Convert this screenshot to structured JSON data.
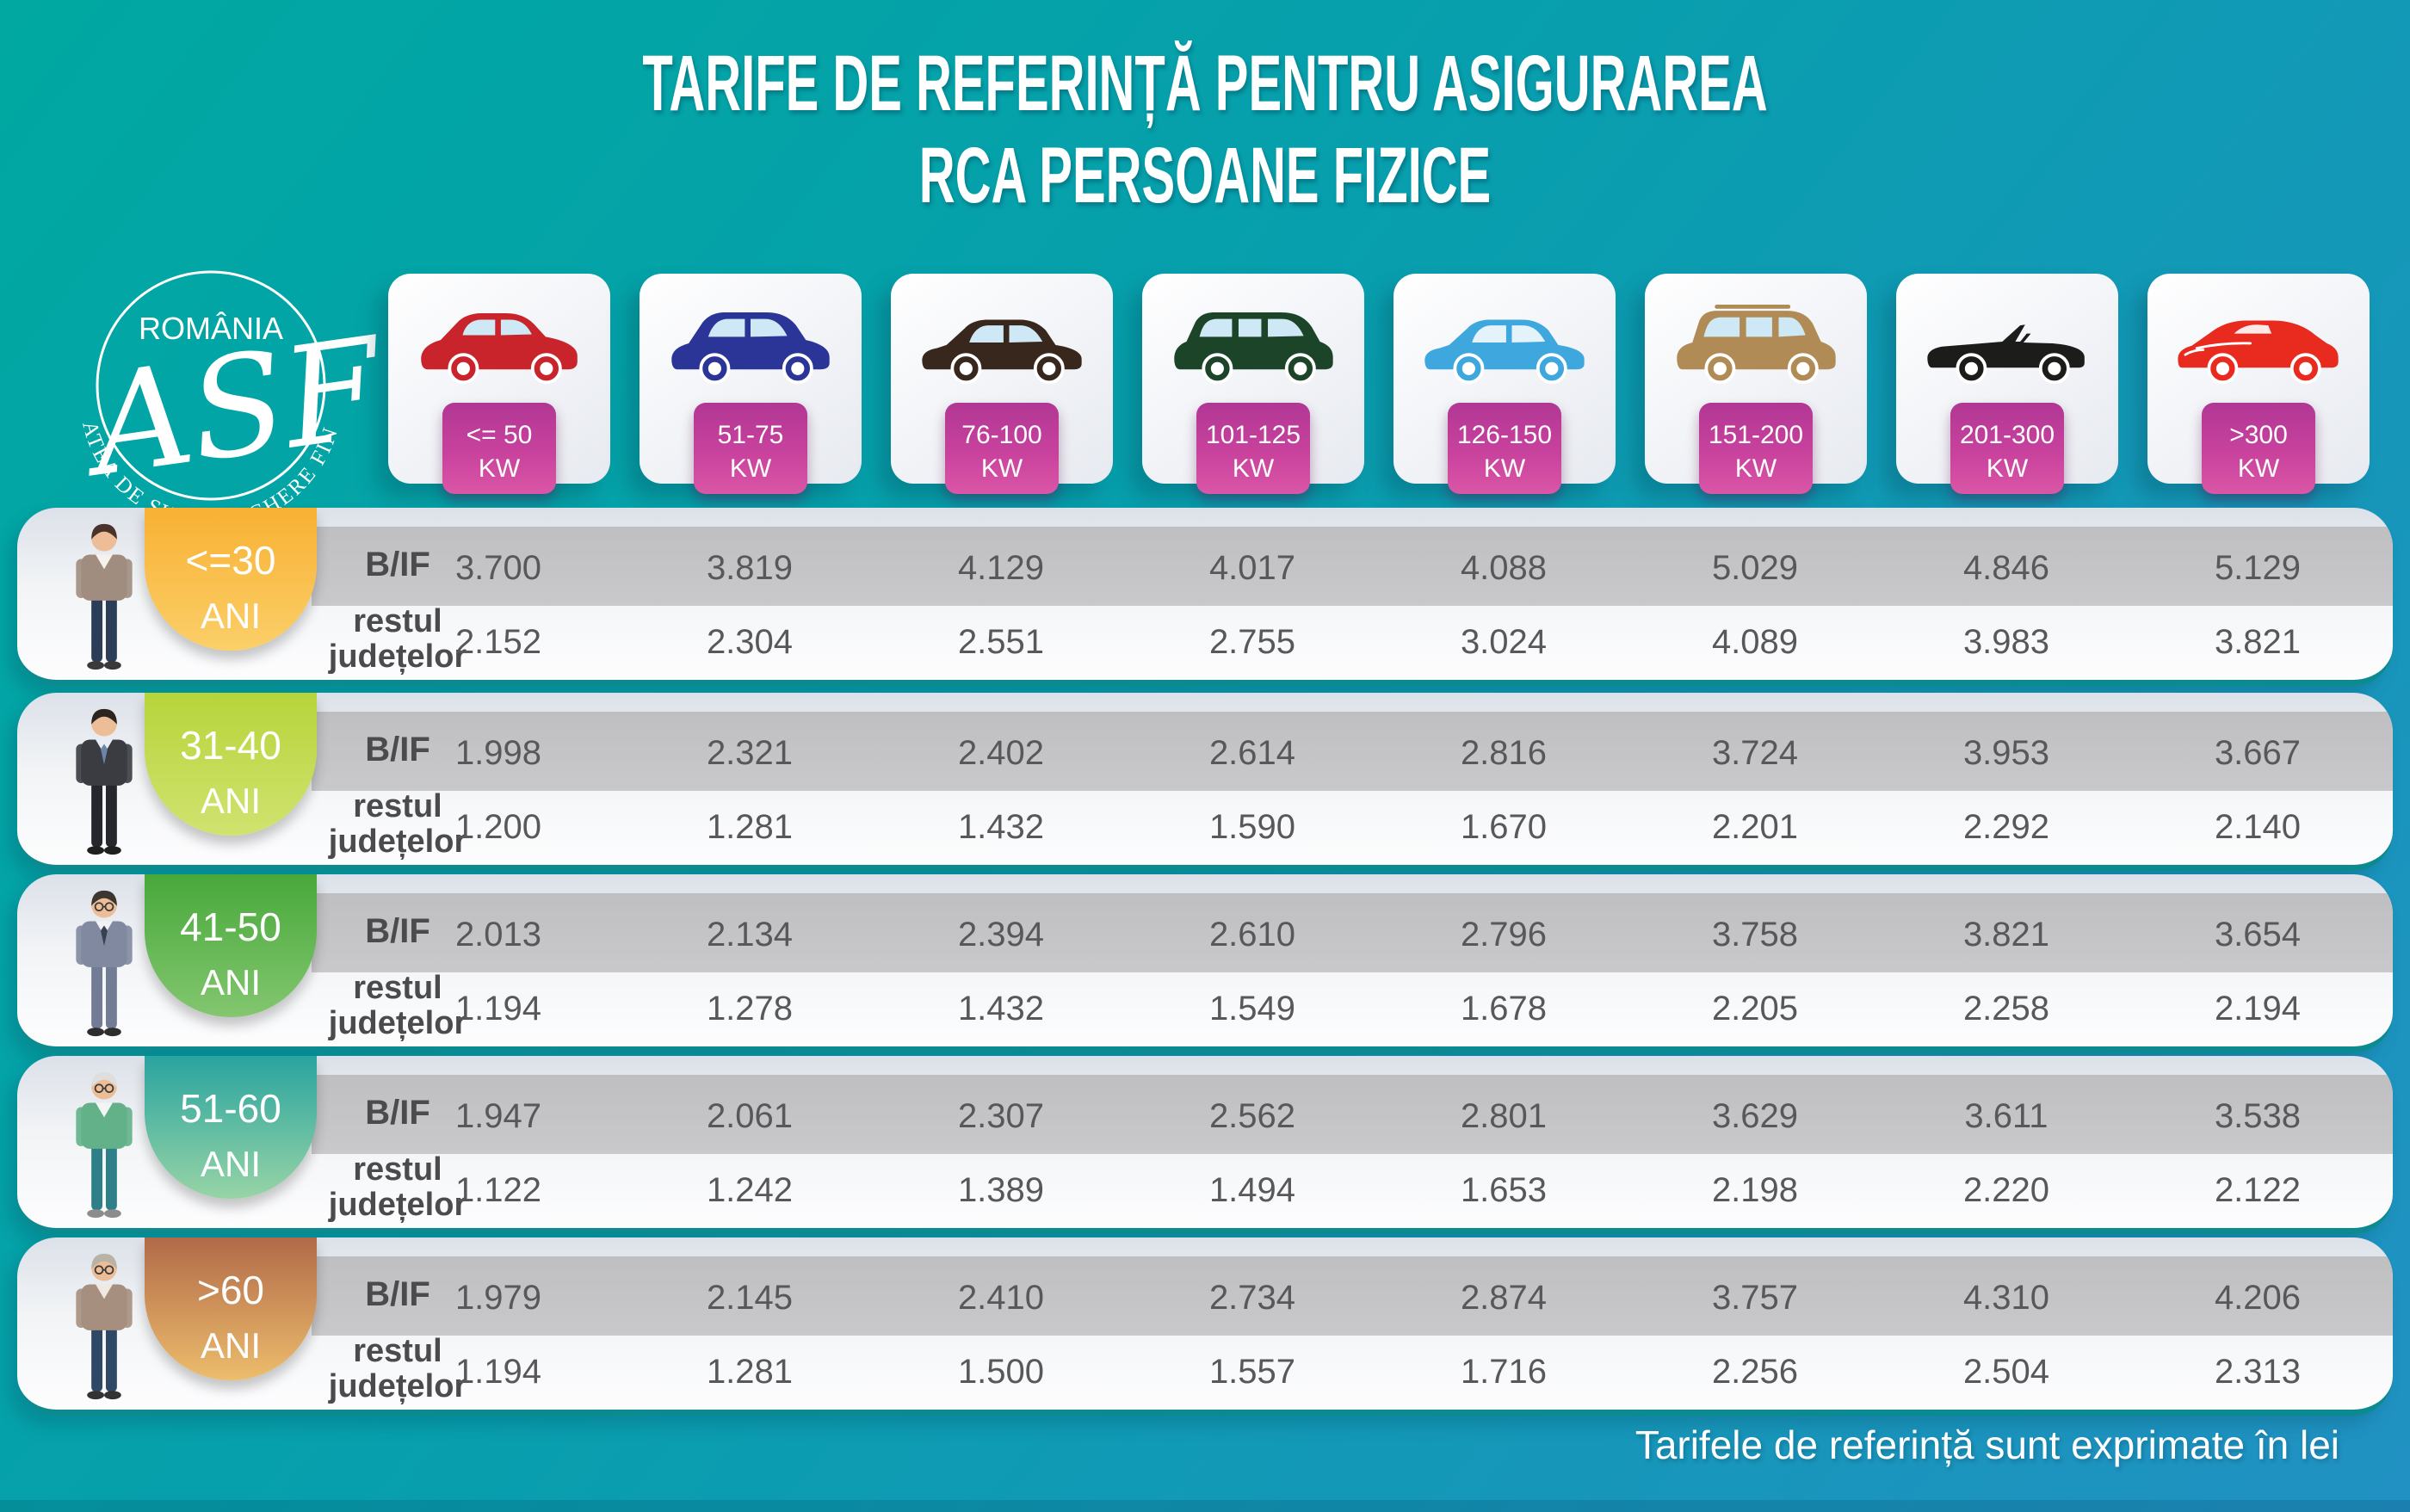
{
  "title": {
    "line1": "TARIFE DE REFERINȚĂ PENTRU ASIGURAREA",
    "line2": "RCA PERSOANE FIZICE"
  },
  "logo": {
    "country": "ROMÂNIA",
    "org_arc": "AUTORITATEA DE SUPRAVEGHERE FINANCIARĂ",
    "monogram": "ASF"
  },
  "power_categories": [
    {
      "range": "<= 50",
      "unit": "KW",
      "car_type": "hatchback",
      "car_color": "#c9242b",
      "glass_color": "#cfe8f5"
    },
    {
      "range": "51-75",
      "unit": "KW",
      "car_type": "crossover",
      "car_color": "#2b3598",
      "glass_color": "#cfe8f5"
    },
    {
      "range": "76-100",
      "unit": "KW",
      "car_type": "sedan",
      "car_color": "#38271c",
      "glass_color": "#cfe8f5"
    },
    {
      "range": "101-125",
      "unit": "KW",
      "car_type": "minivan",
      "car_color": "#1c4429",
      "glass_color": "#cfe8f5"
    },
    {
      "range": "126-150",
      "unit": "KW",
      "car_type": "sedan",
      "car_color": "#3ea7de",
      "glass_color": "#e4f2fa"
    },
    {
      "range": "151-200",
      "unit": "KW",
      "car_type": "suv",
      "car_color": "#b18b56",
      "glass_color": "#cfe8f5"
    },
    {
      "range": "201-300",
      "unit": "KW",
      "car_type": "convertible",
      "car_color": "#1c1c1a",
      "glass_color": "#cfe8f5"
    },
    {
      "range": ">300",
      "unit": "KW",
      "car_type": "sports",
      "car_color": "#e92a1f",
      "glass_color": "#fde9e8"
    }
  ],
  "row_labels": {
    "bif": "B/IF",
    "rest_line1": "restul",
    "rest_line2": "județelor"
  },
  "age_groups": [
    {
      "age_line1": "<=30",
      "age_line2": "ANI",
      "badge_from": "#f8b133",
      "badge_to": "#fbcf69",
      "avatar": {
        "hair": "#4a332a",
        "top": "#a08d7f",
        "shirt": "#f5f2ee",
        "pants": "#2c3e57",
        "shoes": "#3a3a3a",
        "glasses": false,
        "tie": ""
      },
      "bif_values": [
        "3.700",
        "3.819",
        "4.129",
        "4.017",
        "4.088",
        "5.029",
        "4.846",
        "5.129"
      ],
      "rest_values": [
        "2.152",
        "2.304",
        "2.551",
        "2.755",
        "3.024",
        "4.089",
        "3.983",
        "3.821"
      ]
    },
    {
      "age_line1": "31-40",
      "age_line2": "ANI",
      "badge_from": "#b7d43a",
      "badge_to": "#d0e370",
      "avatar": {
        "hair": "#2b241f",
        "top": "#3a3c42",
        "shirt": "#e8eef4",
        "pants": "#26272c",
        "shoes": "#1f1f1f",
        "glasses": false,
        "tie": "#6b87a8"
      },
      "bif_values": [
        "1.998",
        "2.321",
        "2.402",
        "2.614",
        "2.816",
        "3.724",
        "3.953",
        "3.667"
      ],
      "rest_values": [
        "1.200",
        "1.281",
        "1.432",
        "1.590",
        "1.670",
        "2.201",
        "2.292",
        "2.140"
      ]
    },
    {
      "age_line1": "41-50",
      "age_line2": "ANI",
      "badge_from": "#48a93b",
      "badge_to": "#83c66f",
      "avatar": {
        "hair": "#3c3631",
        "top": "#8089a0",
        "shirt": "#f0f2f5",
        "pants": "#737c95",
        "shoes": "#2d2d2d",
        "glasses": true,
        "tie": "#39404e"
      },
      "bif_values": [
        "2.013",
        "2.134",
        "2.394",
        "2.610",
        "2.796",
        "3.758",
        "3.821",
        "3.654"
      ],
      "rest_values": [
        "1.194",
        "1.278",
        "1.432",
        "1.549",
        "1.678",
        "2.205",
        "2.258",
        "2.194"
      ]
    },
    {
      "age_line1": "51-60",
      "age_line2": "ANI",
      "badge_from": "#2aa49f",
      "badge_to": "#97d4a6",
      "avatar": {
        "hair": "#dedede",
        "top": "#63b189",
        "shirt": "#f2f5f3",
        "pants": "#2e7f88",
        "shoes": "#8c8c8c",
        "glasses": true,
        "tie": ""
      },
      "bif_values": [
        "1.947",
        "2.061",
        "2.307",
        "2.562",
        "2.801",
        "3.629",
        "3.611",
        "3.538"
      ],
      "rest_values": [
        "1.122",
        "1.242",
        "1.389",
        "1.494",
        "1.653",
        "2.198",
        "2.220",
        "2.122"
      ]
    },
    {
      "age_line1": ">60",
      "age_line2": "ANI",
      "badge_from": "#b16a48",
      "badge_to": "#edbd6d",
      "avatar": {
        "hair": "#b9b2a9",
        "top": "#a68f7e",
        "shirt": "#efe9e2",
        "pants": "#2f4866",
        "shoes": "#333333",
        "glasses": true,
        "tie": ""
      },
      "bif_values": [
        "1.979",
        "2.145",
        "2.410",
        "2.734",
        "2.874",
        "3.757",
        "4.310",
        "4.206"
      ],
      "rest_values": [
        "1.194",
        "1.281",
        "1.500",
        "1.557",
        "1.716",
        "2.256",
        "2.504",
        "2.313"
      ]
    }
  ],
  "footer": {
    "note": "Tarifele de referință sunt exprimate în lei"
  },
  "colors": {
    "background_from": "#00a8a1",
    "background_to": "#2191c3",
    "band_gray": "#c4c4c6",
    "value_text": "#58585a",
    "tag_magenta_from": "#b13794",
    "tag_magenta_to": "#da56a6",
    "row_underline": "#0b8a8f"
  }
}
